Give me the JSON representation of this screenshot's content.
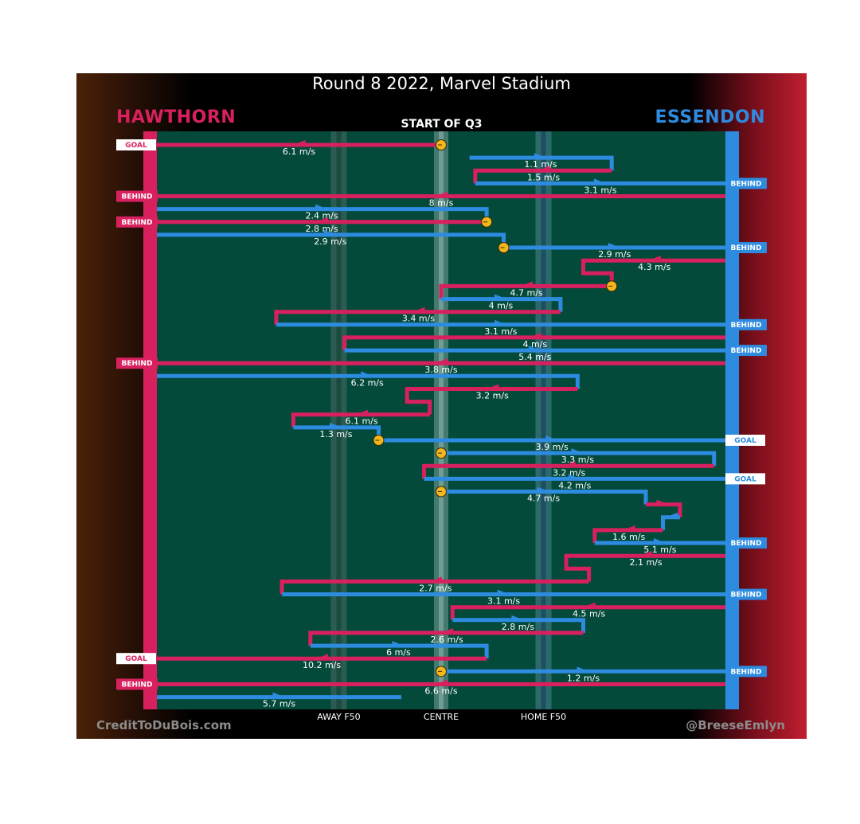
{
  "title": "Round 8 2022, Marvel Stadium",
  "subtitle": "START OF Q3",
  "teams": {
    "left": {
      "name": "HAWTHORN",
      "color": "#d9205f"
    },
    "right": {
      "name": "ESSENDON",
      "color": "#2d8be0"
    }
  },
  "credits": {
    "left": "CreditToDuBois.com",
    "right": "@BreeseEmlyn"
  },
  "colors": {
    "field": "#034a3b",
    "hawthorn": "#d9205f",
    "essendon": "#2d8be0",
    "ball_up": "#f2b61f"
  },
  "chart_data": {
    "type": "chain-trace",
    "description_axis": "ground position",
    "x_ticks": [
      {
        "label": "AWAY F50",
        "pos": 0.32
      },
      {
        "label": "CENTRE",
        "pos": 0.5
      },
      {
        "label": "HOME F50",
        "pos": 0.68
      }
    ],
    "chains": [
      {
        "team": "hawthorn",
        "points": [
          [
            0.5,
            0
          ],
          [
            0,
            0
          ]
        ],
        "speed": "6.1 m/s",
        "start": "ball-up",
        "end": "GOAL"
      },
      {
        "team": "essendon",
        "points": [
          [
            0.55,
            1
          ],
          [
            0.8,
            1
          ],
          [
            0.8,
            2
          ]
        ],
        "speed": "1.1 m/s"
      },
      {
        "team": "hawthorn",
        "points": [
          [
            0.8,
            2
          ],
          [
            0.56,
            2
          ],
          [
            0.56,
            3
          ]
        ],
        "speed": "1.5 m/s"
      },
      {
        "team": "essendon",
        "points": [
          [
            0.56,
            3
          ],
          [
            1,
            3
          ]
        ],
        "speed": "3.1 m/s",
        "end": "BEHIND"
      },
      {
        "team": "hawthorn",
        "points": [
          [
            1,
            4
          ],
          [
            0,
            4
          ]
        ],
        "speed": "8 m/s",
        "end": "BEHIND"
      },
      {
        "team": "essendon",
        "points": [
          [
            0,
            5
          ],
          [
            0.58,
            5
          ],
          [
            0.58,
            6
          ]
        ],
        "speed": "2.4 m/s"
      },
      {
        "team": "hawthorn",
        "points": [
          [
            0.58,
            6
          ],
          [
            0,
            6
          ]
        ],
        "speed": "2.8 m/s",
        "start": "ball-up",
        "end": "BEHIND"
      },
      {
        "team": "essendon",
        "points": [
          [
            0,
            7
          ],
          [
            0.61,
            7
          ],
          [
            0.61,
            8
          ]
        ],
        "speed": "2.9 m/s"
      },
      {
        "team": "essendon",
        "points": [
          [
            0.61,
            8
          ],
          [
            1,
            8
          ]
        ],
        "speed": "2.9 m/s",
        "start": "ball-up",
        "end": "BEHIND"
      },
      {
        "team": "hawthorn",
        "points": [
          [
            1,
            9
          ],
          [
            0.75,
            9
          ],
          [
            0.75,
            10
          ],
          [
            0.8,
            10
          ],
          [
            0.8,
            11
          ]
        ],
        "speed": "4.3 m/s"
      },
      {
        "team": "hawthorn",
        "points": [
          [
            0.8,
            11
          ],
          [
            0.5,
            11
          ],
          [
            0.5,
            12
          ]
        ],
        "speed": "4.7 m/s",
        "start": "ball-up"
      },
      {
        "team": "essendon",
        "points": [
          [
            0.5,
            12
          ],
          [
            0.71,
            12
          ],
          [
            0.71,
            13
          ]
        ],
        "speed": "4 m/s"
      },
      {
        "team": "hawthorn",
        "points": [
          [
            0.71,
            13
          ],
          [
            0.21,
            13
          ],
          [
            0.21,
            14
          ]
        ],
        "speed": "3.4 m/s"
      },
      {
        "team": "essendon",
        "points": [
          [
            0.21,
            14
          ],
          [
            1,
            14
          ]
        ],
        "speed": "3.1 m/s",
        "end": "BEHIND"
      },
      {
        "team": "hawthorn",
        "points": [
          [
            1,
            15
          ],
          [
            0.33,
            15
          ],
          [
            0.33,
            16
          ]
        ],
        "speed": "4 m/s"
      },
      {
        "team": "essendon",
        "points": [
          [
            0.33,
            16
          ],
          [
            1,
            16
          ]
        ],
        "speed": "5.4 m/s",
        "end": "BEHIND"
      },
      {
        "team": "hawthorn",
        "points": [
          [
            1,
            17
          ],
          [
            0,
            17
          ]
        ],
        "speed": "3.8 m/s",
        "end": "BEHIND"
      },
      {
        "team": "essendon",
        "points": [
          [
            0,
            18
          ],
          [
            0.74,
            18
          ],
          [
            0.74,
            19
          ]
        ],
        "speed": "6.2 m/s"
      },
      {
        "team": "hawthorn",
        "points": [
          [
            0.74,
            19
          ],
          [
            0.44,
            19
          ],
          [
            0.44,
            20
          ],
          [
            0.48,
            20
          ],
          [
            0.48,
            21
          ]
        ],
        "speed": "3.2 m/s"
      },
      {
        "team": "hawthorn",
        "points": [
          [
            0.48,
            21
          ],
          [
            0.24,
            21
          ],
          [
            0.24,
            22
          ]
        ],
        "speed": "6.1 m/s"
      },
      {
        "team": "essendon",
        "points": [
          [
            0.24,
            22
          ],
          [
            0.39,
            22
          ],
          [
            0.39,
            23
          ]
        ],
        "speed": "1.3 m/s"
      },
      {
        "team": "essendon",
        "points": [
          [
            0.39,
            23
          ],
          [
            1,
            23
          ]
        ],
        "speed": "3.9 m/s",
        "start": "ball-up",
        "end": "GOAL"
      },
      {
        "team": "essendon",
        "points": [
          [
            0.5,
            24
          ],
          [
            0.98,
            24
          ],
          [
            0.98,
            25
          ]
        ],
        "speed": "3.3 m/s",
        "start": "ball-up"
      },
      {
        "team": "hawthorn",
        "points": [
          [
            0.98,
            25
          ],
          [
            0.47,
            25
          ],
          [
            0.47,
            26
          ]
        ],
        "speed": "3.2 m/s"
      },
      {
        "team": "essendon",
        "points": [
          [
            0.47,
            26
          ],
          [
            1,
            26
          ]
        ],
        "speed": "4.2 m/s",
        "end": "GOAL"
      },
      {
        "team": "essendon",
        "points": [
          [
            0.5,
            27
          ],
          [
            0.86,
            27
          ],
          [
            0.86,
            28
          ]
        ],
        "speed": "4.7 m/s",
        "start": "ball-up"
      },
      {
        "team": "hawthorn",
        "points": [
          [
            0.86,
            28
          ],
          [
            0.92,
            28
          ],
          [
            0.92,
            29
          ]
        ],
        "speed": ""
      },
      {
        "team": "essendon",
        "points": [
          [
            0.92,
            29
          ],
          [
            0.89,
            29
          ],
          [
            0.89,
            30
          ]
        ],
        "speed": ""
      },
      {
        "team": "hawthorn",
        "points": [
          [
            0.89,
            30
          ],
          [
            0.77,
            30
          ],
          [
            0.77,
            31
          ]
        ],
        "speed": "1.6 m/s"
      },
      {
        "team": "essendon",
        "points": [
          [
            0.77,
            31
          ],
          [
            1,
            31
          ]
        ],
        "speed": "5.1 m/s",
        "end": "BEHIND"
      },
      {
        "team": "hawthorn",
        "points": [
          [
            1,
            32
          ],
          [
            0.72,
            32
          ],
          [
            0.72,
            33
          ],
          [
            0.76,
            33
          ],
          [
            0.76,
            34
          ]
        ],
        "speed": "2.1 m/s"
      },
      {
        "team": "hawthorn",
        "points": [
          [
            0.76,
            34
          ],
          [
            0.22,
            34
          ],
          [
            0.22,
            35
          ]
        ],
        "speed": "2.7 m/s"
      },
      {
        "team": "essendon",
        "points": [
          [
            0.22,
            35
          ],
          [
            1,
            35
          ]
        ],
        "speed": "3.1 m/s",
        "end": "BEHIND"
      },
      {
        "team": "hawthorn",
        "points": [
          [
            1,
            36
          ],
          [
            0.52,
            36
          ],
          [
            0.52,
            37
          ]
        ],
        "speed": "4.5 m/s"
      },
      {
        "team": "essendon",
        "points": [
          [
            0.52,
            37
          ],
          [
            0.75,
            37
          ],
          [
            0.75,
            38
          ]
        ],
        "speed": "2.8 m/s"
      },
      {
        "team": "hawthorn",
        "points": [
          [
            0.75,
            38
          ],
          [
            0.27,
            38
          ],
          [
            0.27,
            39
          ]
        ],
        "speed": "2.6 m/s"
      },
      {
        "team": "essendon",
        "points": [
          [
            0.27,
            39
          ],
          [
            0.58,
            39
          ],
          [
            0.58,
            40
          ]
        ],
        "speed": "6 m/s"
      },
      {
        "team": "hawthorn",
        "points": [
          [
            0.58,
            40
          ],
          [
            0,
            40
          ]
        ],
        "speed": "10.2 m/s",
        "end": "GOAL"
      },
      {
        "team": "essendon",
        "points": [
          [
            0.5,
            41
          ],
          [
            1,
            41
          ]
        ],
        "speed": "1.2 m/s",
        "start": "ball-up",
        "end": "BEHIND"
      },
      {
        "team": "hawthorn",
        "points": [
          [
            1,
            42
          ],
          [
            0,
            42
          ]
        ],
        "speed": "6.6 m/s",
        "end": "BEHIND"
      },
      {
        "team": "essendon",
        "points": [
          [
            0,
            43
          ],
          [
            0.43,
            43
          ]
        ],
        "speed": "5.7 m/s"
      }
    ]
  }
}
